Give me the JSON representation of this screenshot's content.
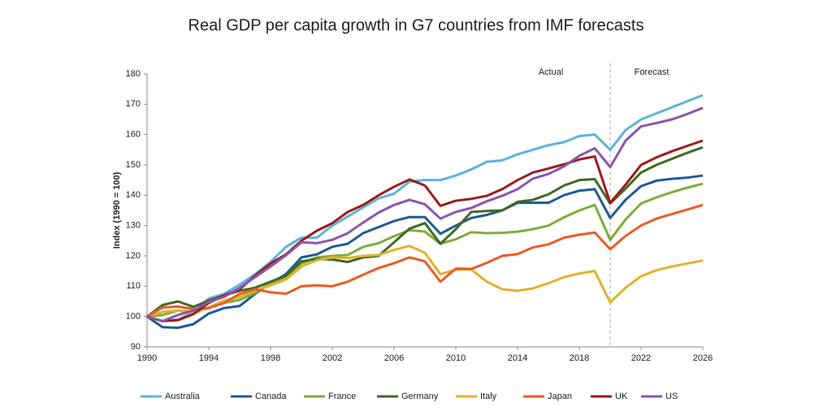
{
  "chart_data": {
    "type": "line",
    "title": "Real GDP per capita growth in G7 countries from IMF forecasts",
    "y_label": "Index (1990 = 100)",
    "annotations": [
      "Actual",
      "Forecast"
    ],
    "forecast_start": 2020,
    "x": [
      1990,
      1991,
      1992,
      1993,
      1994,
      1995,
      1996,
      1997,
      1998,
      1999,
      2000,
      2001,
      2002,
      2003,
      2004,
      2005,
      2006,
      2007,
      2008,
      2009,
      2010,
      2011,
      2012,
      2013,
      2014,
      2015,
      2016,
      2017,
      2018,
      2019,
      2020,
      2021,
      2022,
      2023,
      2024,
      2025,
      2026
    ],
    "xlim": [
      1990,
      2026
    ],
    "xticks": [
      1990,
      1994,
      1998,
      2002,
      2006,
      2010,
      2014,
      2018,
      2022,
      2026
    ],
    "ylim": [
      90,
      180
    ],
    "yticks": [
      90,
      100,
      110,
      120,
      130,
      140,
      150,
      160,
      170,
      180
    ],
    "grid": false,
    "legend": "bottom",
    "series": [
      {
        "name": "Australia",
        "color": "#5bb4dc",
        "values": [
          100,
          98.5,
          99,
          101.5,
          106,
          107.5,
          110.5,
          114,
          118,
          123,
          126,
          126,
          130,
          133,
          136,
          139,
          140.5,
          144.5,
          145,
          145,
          146.5,
          148.5,
          151,
          151.5,
          153.5,
          155,
          156.5,
          157.5,
          159.5,
          160,
          155,
          161.5,
          165,
          167,
          169,
          171,
          173
        ]
      },
      {
        "name": "Canada",
        "color": "#1f5a96",
        "values": [
          100,
          96.5,
          96.3,
          97.5,
          101,
          102.8,
          103.5,
          107.5,
          111,
          114,
          119.5,
          120.5,
          123,
          124,
          127.5,
          129.5,
          131.5,
          132.8,
          132.8,
          127.3,
          130,
          132.5,
          133.5,
          135,
          137.5,
          137.5,
          137.5,
          140,
          141.5,
          142,
          132.5,
          138.5,
          143,
          144.8,
          145.4,
          145.8,
          146.5
        ]
      },
      {
        "name": "France",
        "color": "#7fac3c",
        "values": [
          100,
          100.5,
          102,
          101.5,
          103,
          104.5,
          105.5,
          107.8,
          111.2,
          113,
          117.5,
          119.5,
          120,
          120.3,
          123,
          124.2,
          126.5,
          128.5,
          128,
          124,
          125.5,
          127.8,
          127.5,
          127.6,
          128,
          128.8,
          130,
          132.7,
          135,
          136.8,
          125.3,
          132,
          137.3,
          139.3,
          141,
          142.5,
          143.8
        ]
      },
      {
        "name": "Germany",
        "color": "#3f6b23",
        "values": [
          100,
          103.8,
          105,
          103.2,
          105.3,
          107,
          108.5,
          109.5,
          111.5,
          113.5,
          118.2,
          119,
          118.8,
          118,
          119.5,
          120,
          124.5,
          129,
          130.8,
          124,
          128.8,
          134.5,
          134.8,
          135,
          137.8,
          138.5,
          140.3,
          143.2,
          145,
          145.3,
          137.3,
          142.2,
          147.5,
          150,
          152,
          154,
          155.8
        ]
      },
      {
        "name": "Italy",
        "color": "#e3b12a",
        "values": [
          100,
          101.5,
          102,
          101,
          103,
          105.3,
          106.5,
          108.5,
          110.3,
          112.2,
          116.5,
          118.6,
          119.5,
          119.3,
          120,
          120.3,
          122,
          123.3,
          121,
          114,
          115.5,
          115.5,
          111.5,
          109,
          108.5,
          109.3,
          111,
          113,
          114.2,
          115,
          104.7,
          109.5,
          113.3,
          115.3,
          116.5,
          117.5,
          118.5
        ]
      },
      {
        "name": "Japan",
        "color": "#ef5a24",
        "values": [
          100,
          103,
          103.3,
          102.5,
          102.8,
          104.5,
          107.5,
          109,
          108,
          107.5,
          110,
          110.3,
          110,
          111.5,
          113.8,
          116,
          117.6,
          119.5,
          118.2,
          111.5,
          115.8,
          115.7,
          117.7,
          120,
          120.6,
          122.8,
          123.8,
          126,
          127,
          127.7,
          122.2,
          126.6,
          130,
          132.3,
          133.8,
          135.3,
          136.8
        ]
      },
      {
        "name": "UK",
        "color": "#9b1c1c",
        "values": [
          100,
          98.5,
          98.8,
          100.8,
          104.5,
          107,
          109,
          113.5,
          117.5,
          120.5,
          125,
          128.3,
          130.8,
          134.5,
          136.8,
          140,
          142.8,
          145.2,
          143.2,
          136.5,
          138.2,
          138.8,
          139.8,
          142,
          145,
          147.5,
          148.8,
          150.2,
          151.8,
          152.8,
          137.5,
          143.5,
          150,
          152.5,
          154.5,
          156.3,
          158
        ]
      },
      {
        "name": "US",
        "color": "#8a55b0",
        "values": [
          100,
          98.5,
          100.5,
          102,
          104.8,
          106.5,
          109.5,
          113,
          116.5,
          120.2,
          124.5,
          124.2,
          125.3,
          127.5,
          131,
          134.3,
          136.8,
          138.5,
          137,
          132.3,
          134.5,
          135.8,
          138,
          139.8,
          142,
          145.5,
          147,
          149.5,
          153,
          155.5,
          149.3,
          158,
          162.7,
          163.8,
          165,
          166.8,
          168.8
        ]
      }
    ]
  }
}
